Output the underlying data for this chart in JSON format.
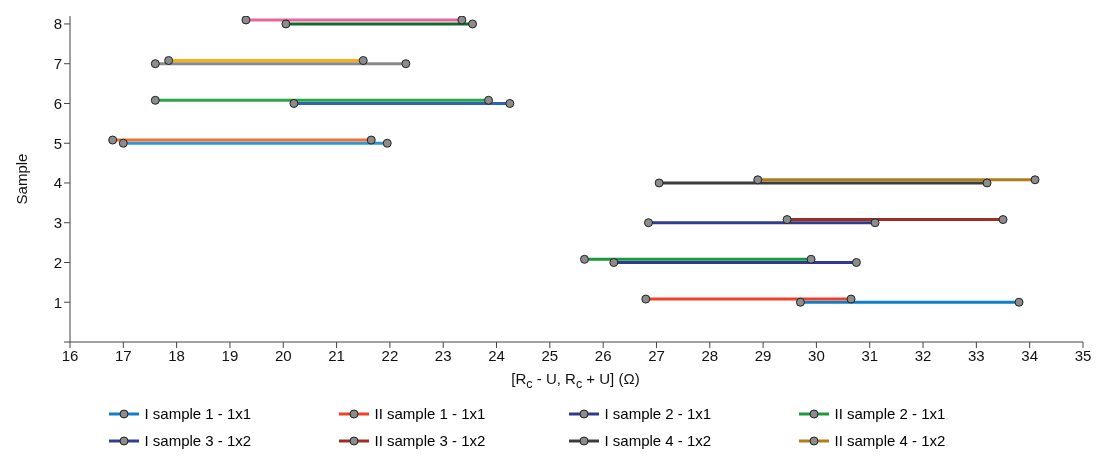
{
  "chart_data": {
    "type": "line",
    "xlabel": "[R$_{c}$ - U, R$_{c}$ + U] (Ω)",
    "ylabel": "Sample",
    "xlim": [
      16,
      35
    ],
    "xticks": [
      16,
      17,
      18,
      19,
      20,
      21,
      22,
      23,
      24,
      25,
      26,
      27,
      28,
      29,
      30,
      31,
      32,
      33,
      34,
      35
    ],
    "ylim": [
      0,
      8.2
    ],
    "yticks": [
      {
        "value": 0,
        "label": null
      },
      1,
      2,
      3,
      4,
      5,
      6,
      7,
      8
    ],
    "grid": false,
    "legend": "bottom",
    "marker": "circle",
    "line_style": "solid",
    "series": [
      {
        "name": "I sample 1 - 1x1",
        "color": "#0f7fc8",
        "x": [
          29.7,
          33.8
        ],
        "values": [
          1,
          1
        ]
      },
      {
        "name": "II sample 1 - 1x1",
        "color": "#ef4123",
        "x": [
          26.8,
          30.65
        ],
        "values": [
          1.08,
          1.08
        ]
      },
      {
        "name": "I sample 2 - 1x1",
        "color": "#2e3a8f",
        "x": [
          26.2,
          30.75
        ],
        "values": [
          2,
          2
        ]
      },
      {
        "name": "II sample 2 - 1x1",
        "color": "#1a9a3a",
        "x": [
          25.65,
          29.9
        ],
        "values": [
          2.08,
          2.08
        ]
      },
      {
        "name": "I sample 3 - 1x2",
        "color": "#2f3e8c",
        "x": [
          26.85,
          31.1
        ],
        "values": [
          3,
          3
        ]
      },
      {
        "name": "II sample 3 - 1x2",
        "color": "#9b2f24",
        "x": [
          29.45,
          33.5
        ],
        "values": [
          3.08,
          3.08
        ]
      },
      {
        "name": "I sample 4 - 1x2",
        "color": "#3c3c3c",
        "x": [
          27.05,
          33.2
        ],
        "values": [
          4,
          4
        ]
      },
      {
        "name": "II sample 4 - 1x2",
        "color": "#b07d1c",
        "x": [
          28.9,
          34.1
        ],
        "values": [
          4.08,
          4.08
        ]
      },
      {
        "color": "#2c96d8",
        "x": [
          17.0,
          21.95
        ],
        "values": [
          5,
          5
        ]
      },
      {
        "color": "#f07030",
        "x": [
          16.8,
          21.65
        ],
        "values": [
          5.08,
          5.08
        ]
      },
      {
        "color": "#2a63b8",
        "x": [
          20.2,
          24.25
        ],
        "values": [
          6,
          6
        ]
      },
      {
        "color": "#2aa645",
        "x": [
          17.6,
          23.85
        ],
        "values": [
          6.08,
          6.08
        ]
      },
      {
        "color": "#8a8a8a",
        "x": [
          17.6,
          22.3
        ],
        "values": [
          7,
          7
        ]
      },
      {
        "color": "#f6b21b",
        "x": [
          17.85,
          21.5
        ],
        "values": [
          7.08,
          7.08
        ]
      },
      {
        "color": "#0e6a30",
        "x": [
          20.05,
          23.55
        ],
        "values": [
          8,
          8
        ]
      },
      {
        "color": "#e8649c",
        "x": [
          19.3,
          23.35
        ],
        "values": [
          8.1,
          8.1
        ]
      }
    ]
  }
}
